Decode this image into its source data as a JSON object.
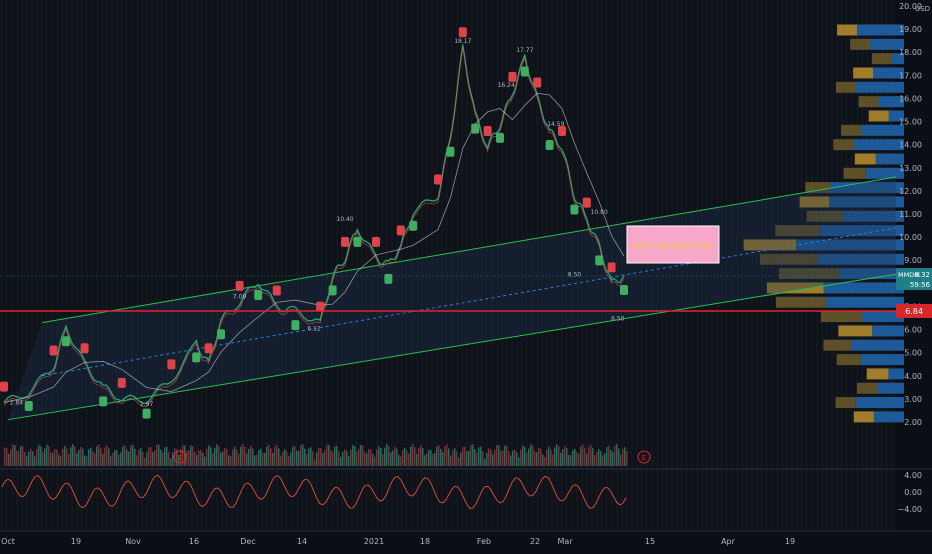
{
  "chart_data": {
    "type": "candlestick",
    "currency": "USD",
    "price_axis": {
      "ticks": [
        2.0,
        3.0,
        4.0,
        5.0,
        6.0,
        7.0,
        8.0,
        9.0,
        10.0,
        11.0,
        12.0,
        13.0,
        14.0,
        15.0,
        16.0,
        17.0,
        18.0,
        19.0,
        20.0
      ],
      "range": [
        1.4,
        20.3
      ]
    },
    "time_axis": {
      "ticks": [
        "Oct",
        "19",
        "Nov",
        "16",
        "Dec",
        "14",
        "2021",
        "18",
        "Feb",
        "22",
        "Mar",
        "15",
        "Apr",
        "19"
      ]
    },
    "indicator_axis": {
      "ticks": [
        "4.00",
        "0.00",
        "−4.00"
      ],
      "range": [
        -6,
        6
      ]
    },
    "price_series": [
      {
        "t": 0,
        "p": 2.84
      },
      {
        "t": 0.04,
        "p": 3.3
      },
      {
        "t": 0.08,
        "p": 4.4
      },
      {
        "t": 0.1,
        "p": 6.1
      },
      {
        "t": 0.13,
        "p": 4.5
      },
      {
        "t": 0.16,
        "p": 3.5
      },
      {
        "t": 0.19,
        "p": 3.0
      },
      {
        "t": 0.23,
        "p": 2.97
      },
      {
        "t": 0.27,
        "p": 3.8
      },
      {
        "t": 0.31,
        "p": 5.4
      },
      {
        "t": 0.33,
        "p": 4.5
      },
      {
        "t": 0.35,
        "p": 6.4
      },
      {
        "t": 0.38,
        "p": 7.2
      },
      {
        "t": 0.41,
        "p": 8.1
      },
      {
        "t": 0.44,
        "p": 7.0
      },
      {
        "t": 0.47,
        "p": 6.8
      },
      {
        "t": 0.51,
        "p": 6.3
      },
      {
        "t": 0.53,
        "p": 8.3
      },
      {
        "t": 0.55,
        "p": 9.1
      },
      {
        "t": 0.57,
        "p": 10.4
      },
      {
        "t": 0.6,
        "p": 9.1
      },
      {
        "t": 0.62,
        "p": 8.8
      },
      {
        "t": 0.64,
        "p": 9.6
      },
      {
        "t": 0.66,
        "p": 11.1
      },
      {
        "t": 0.7,
        "p": 11.8
      },
      {
        "t": 0.72,
        "p": 14.3
      },
      {
        "t": 0.74,
        "p": 18.17
      },
      {
        "t": 0.76,
        "p": 15.3
      },
      {
        "t": 0.78,
        "p": 13.9
      },
      {
        "t": 0.8,
        "p": 14.9
      },
      {
        "t": 0.82,
        "p": 16.24
      },
      {
        "t": 0.84,
        "p": 17.77
      },
      {
        "t": 0.86,
        "p": 16.0
      },
      {
        "t": 0.88,
        "p": 14.59
      },
      {
        "t": 0.9,
        "p": 13.9
      },
      {
        "t": 0.92,
        "p": 11.8
      },
      {
        "t": 0.94,
        "p": 10.8
      },
      {
        "t": 0.96,
        "p": 9.6
      },
      {
        "t": 0.98,
        "p": 8.0
      },
      {
        "t": 1.0,
        "p": 8.32
      }
    ],
    "annotations": [
      {
        "text": "18.17",
        "t": 0.74,
        "p": 18.4
      },
      {
        "text": "17.77",
        "t": 0.84,
        "p": 18.0
      },
      {
        "text": "16.24",
        "t": 0.81,
        "p": 16.5
      },
      {
        "text": "14.59",
        "t": 0.89,
        "p": 14.8
      },
      {
        "text": "10.40",
        "t": 0.55,
        "p": 10.7
      },
      {
        "text": "10.80",
        "t": 0.96,
        "p": 11.0
      },
      {
        "text": "7.09",
        "t": 0.38,
        "p": 7.35
      },
      {
        "text": "2.84",
        "t": 0.02,
        "p": 2.75
      },
      {
        "text": "2.97",
        "t": 0.23,
        "p": 2.7
      },
      {
        "text": "6.12",
        "t": 0.5,
        "p": 5.95
      },
      {
        "text": "8.50",
        "t": 0.92,
        "p": 8.3
      },
      {
        "text": "6.50",
        "t": 0.99,
        "p": 6.4
      }
    ],
    "last_price": "8.32",
    "countdown": "59:56",
    "symbol_tag": "MMDM",
    "support_price": "6.84",
    "box_label": "Short Squeeze Zone",
    "event_markers": [
      "E",
      "E"
    ]
  }
}
